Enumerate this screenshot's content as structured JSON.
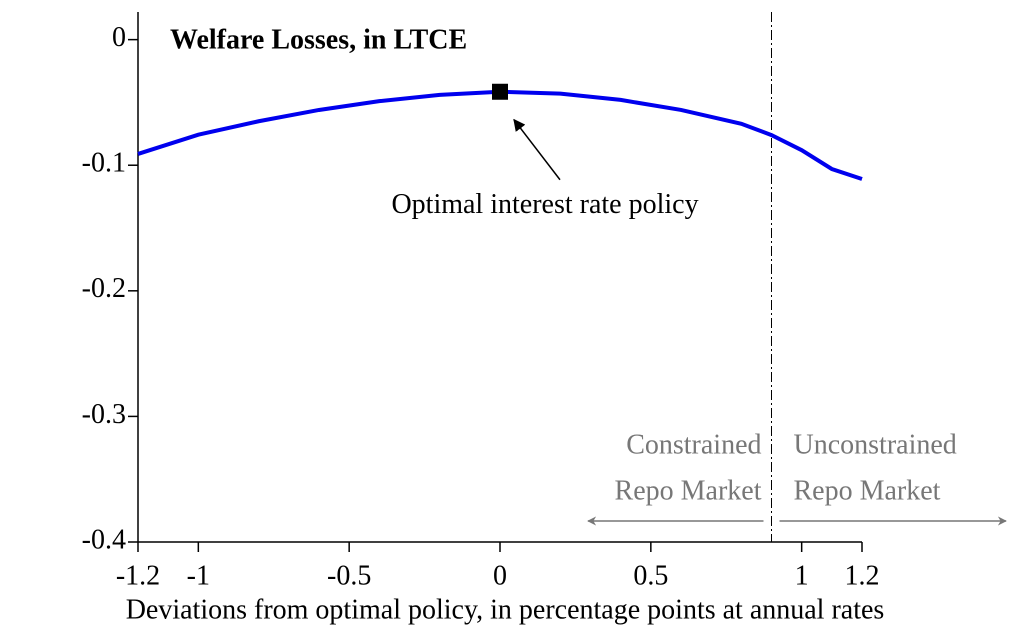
{
  "chart_data": {
    "type": "line",
    "title": "Welfare Losses, in LTCE",
    "x_label": "Deviations from optimal policy, in percentage points at annual rates",
    "x": [
      -1.2,
      -1,
      -0.8,
      -0.6,
      -0.4,
      -0.2,
      0,
      0.2,
      0.4,
      0.6,
      0.8,
      0.9,
      1,
      1.1,
      1.2
    ],
    "series": [
      {
        "name": "Welfare Losses",
        "color": "#0000ee",
        "values": [
          -0.091,
          -0.0757,
          -0.065,
          -0.056,
          -0.049,
          -0.044,
          -0.0415,
          -0.043,
          -0.048,
          -0.056,
          -0.067,
          -0.076,
          -0.088,
          -0.103,
          -0.111
        ]
      }
    ],
    "xlim": [
      -1.2,
      1.2
    ],
    "ylim": [
      -0.4,
      0.022
    ],
    "xticks": [
      -1.2,
      -1,
      -0.5,
      0,
      0.5,
      1,
      1.2
    ],
    "yticks": [
      0,
      -0.1,
      -0.2,
      -0.3,
      -0.4
    ],
    "optimum": {
      "x": 0,
      "y": -0.0415,
      "label": "Optimal interest rate policy"
    },
    "threshold": 0.9,
    "regions": {
      "left": [
        "Constrained",
        "Repo Market"
      ],
      "right": [
        "Unconstrained",
        "Repo Market"
      ]
    }
  }
}
